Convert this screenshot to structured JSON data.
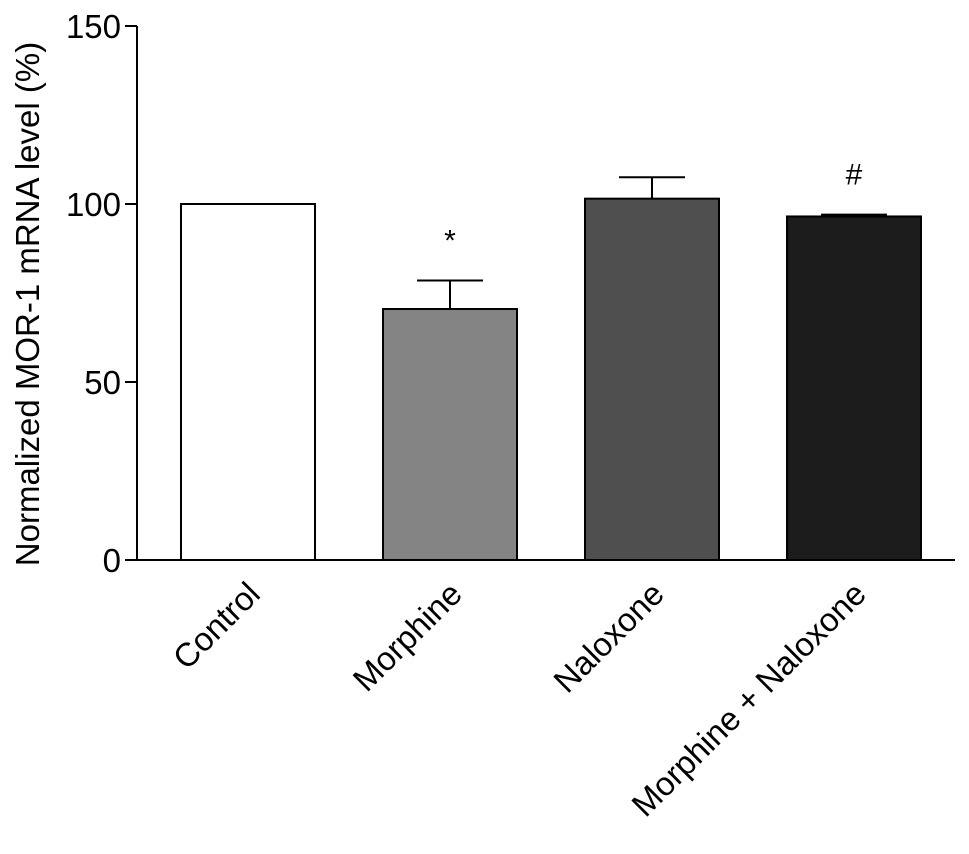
{
  "chart_data": {
    "type": "bar",
    "title": "",
    "xlabel": "",
    "ylabel": "Normalized MOR-1 mRNA level (%)",
    "ylim": [
      0,
      150
    ],
    "yticks": [
      0,
      50,
      100,
      150
    ],
    "categories": [
      "Control",
      "Morphine",
      "Naloxone",
      "Morphine + Naloxone"
    ],
    "values": [
      100,
      70.5,
      101.5,
      96.5
    ],
    "error_upper": [
      0,
      8,
      6,
      0.5
    ],
    "annotations": [
      "",
      "*",
      "",
      "#"
    ],
    "bar_colors": [
      "#ffffff",
      "#848484",
      "#4f4f4f",
      "#1c1c1c"
    ],
    "grid": false,
    "legend": "none"
  }
}
